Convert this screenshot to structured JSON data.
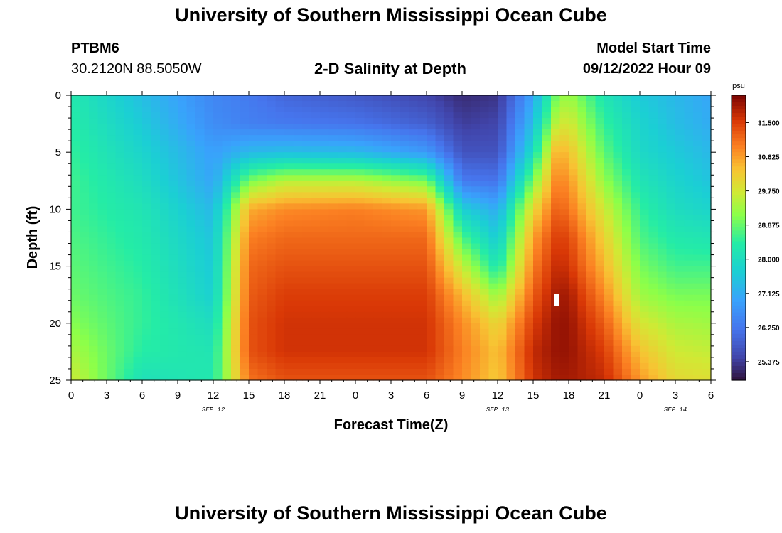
{
  "page": {
    "title": "University of Southern Mississippi Ocean Cube",
    "station": "PTBM6",
    "coords": "30.2120N  88.5050W",
    "subtitle": "2-D Salinity at Depth",
    "model_start_label": "Model Start Time",
    "model_start_value": "09/12/2022 Hour 09",
    "footer_title": "University of Southern Mississippi Ocean Cube"
  },
  "chart_data": {
    "type": "heatmap",
    "title": "2-D Salinity at Depth",
    "xlabel": "Forecast Time(Z)",
    "ylabel": "Depth (ft)",
    "x_range_hours": [
      0,
      54
    ],
    "x_tick_labels": [
      "0",
      "3",
      "6",
      "9",
      "12",
      "15",
      "18",
      "21",
      "0",
      "3",
      "6",
      "9",
      "12",
      "15",
      "18",
      "21",
      "0",
      "3",
      "6"
    ],
    "date_labels": [
      {
        "text": "SEP 12",
        "hour": 12
      },
      {
        "text": "SEP 13",
        "hour": 36
      },
      {
        "text": "SEP 14",
        "hour": 51
      }
    ],
    "y_range_ft": [
      0,
      25
    ],
    "y_ticks": [
      0,
      5,
      10,
      15,
      20,
      25
    ],
    "colorbar": {
      "unit": "psu",
      "range": [
        24.9,
        32.2
      ],
      "ticks": [
        "31.500",
        "30.625",
        "29.750",
        "28.875",
        "28.000",
        "27.125",
        "26.250",
        "25.375"
      ],
      "tick_values": [
        31.5,
        30.625,
        29.75,
        28.875,
        28.0,
        27.125,
        26.25,
        25.375
      ]
    },
    "time_axis_hours": [
      0,
      6,
      12,
      15,
      18,
      24,
      30,
      33,
      36,
      39,
      41,
      42,
      45,
      48,
      51,
      54
    ],
    "depth_axis_ft": [
      0,
      2.5,
      5,
      7.5,
      10,
      12.5,
      15,
      17.5,
      20,
      22.5,
      25
    ],
    "salinity_psu": [
      [
        28.3,
        27.4,
        26.5,
        26.3,
        26.0,
        25.8,
        25.5,
        25.2,
        25.3,
        27.0,
        29.0,
        29.3,
        28.2,
        27.6,
        27.3,
        27.0
      ],
      [
        28.4,
        27.6,
        26.6,
        26.4,
        26.3,
        26.2,
        25.9,
        25.4,
        25.5,
        27.4,
        29.6,
        29.8,
        28.5,
        27.8,
        27.4,
        27.1
      ],
      [
        28.5,
        27.8,
        26.9,
        27.3,
        27.4,
        27.3,
        26.8,
        25.7,
        25.7,
        28.0,
        30.5,
        30.3,
        28.8,
        27.9,
        27.6,
        27.3
      ],
      [
        28.6,
        28.0,
        27.0,
        29.0,
        29.5,
        29.5,
        29.0,
        26.3,
        26.2,
        29.0,
        30.9,
        30.7,
        29.2,
        28.2,
        27.8,
        27.5
      ],
      [
        28.6,
        28.2,
        27.3,
        30.5,
        30.8,
        30.9,
        30.7,
        27.7,
        27.1,
        30.0,
        31.2,
        31.0,
        29.7,
        28.5,
        28.0,
        27.8
      ],
      [
        28.7,
        28.3,
        27.5,
        30.9,
        31.1,
        31.1,
        31.1,
        28.7,
        27.6,
        30.6,
        31.5,
        31.4,
        30.1,
        28.7,
        28.3,
        28.2
      ],
      [
        28.8,
        28.4,
        27.6,
        31.1,
        31.3,
        31.3,
        31.3,
        29.6,
        28.2,
        30.9,
        31.7,
        31.6,
        30.4,
        29.0,
        28.6,
        28.6
      ],
      [
        28.9,
        28.5,
        27.7,
        31.2,
        31.5,
        31.5,
        31.5,
        30.4,
        29.2,
        31.2,
        31.9,
        31.9,
        30.8,
        29.3,
        29.0,
        29.0
      ],
      [
        29.1,
        28.5,
        28.0,
        31.3,
        31.6,
        31.6,
        31.6,
        30.8,
        30.0,
        31.5,
        32.0,
        32.0,
        31.2,
        29.8,
        29.4,
        29.3
      ],
      [
        29.4,
        28.4,
        28.2,
        31.3,
        31.6,
        31.6,
        31.6,
        30.9,
        30.3,
        31.7,
        32.0,
        32.0,
        31.5,
        30.3,
        29.7,
        29.6
      ],
      [
        29.7,
        28.1,
        28.3,
        31.0,
        31.3,
        31.3,
        31.3,
        30.8,
        30.2,
        31.6,
        31.9,
        31.9,
        31.7,
        30.7,
        30.0,
        29.9
      ]
    ]
  }
}
